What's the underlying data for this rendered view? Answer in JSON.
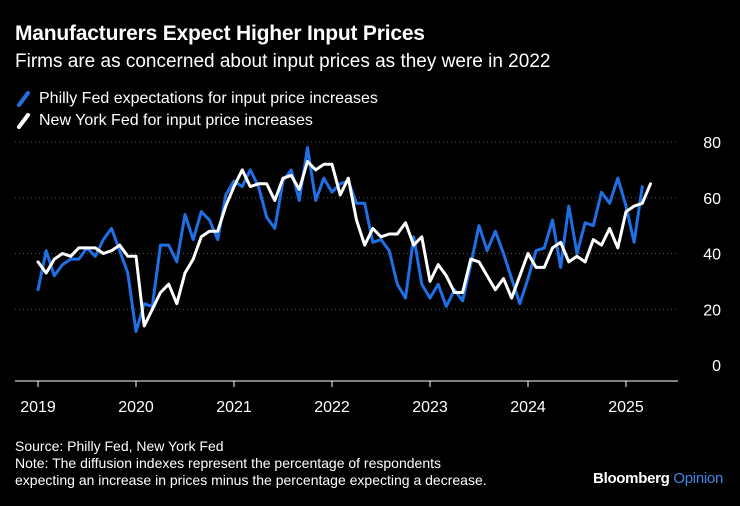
{
  "header": {
    "title": "Manufacturers Expect Higher Input Prices",
    "subtitle": "Firms are as concerned about input prices as they were in 2022"
  },
  "footer": {
    "source": "Source: Philly Fed, New York Fed",
    "note_line1": "Note: The diffusion indexes represent the percentage of respondents",
    "note_line2": "expecting an increase in prices minus the percentage expecting a decrease."
  },
  "brand": {
    "name": "Bloomberg",
    "suffix": "Opinion"
  },
  "colors": {
    "philly": "#1f6fe5",
    "ny": "#ffffff",
    "background": "#000000",
    "grid": "#555555"
  },
  "chart_data": {
    "type": "line",
    "title": "Manufacturers Expect Higher Input Prices",
    "subtitle": "Firms are as concerned about input prices as they were in 2022",
    "xlabel": "",
    "ylabel": "",
    "xlim": [
      2018.92,
      2025.5
    ],
    "ylim": [
      0,
      80
    ],
    "yticks": [
      0,
      20,
      40,
      60,
      80
    ],
    "xticks": [
      {
        "value": 2019.0,
        "label": "2019"
      },
      {
        "value": 2020.0,
        "label": "2020"
      },
      {
        "value": 2021.0,
        "label": "2021"
      },
      {
        "value": 2022.0,
        "label": "2022"
      },
      {
        "value": 2023.0,
        "label": "2023"
      },
      {
        "value": 2024.0,
        "label": "2024"
      },
      {
        "value": 2025.0,
        "label": "2025"
      }
    ],
    "grid": true,
    "legend_position": "top-left",
    "series": [
      {
        "name": "Philly Fed expectations for input price increases",
        "color": "#1f6fe5",
        "x_start": 2019.0,
        "x_step": 0.08333,
        "values": [
          27,
          41,
          32,
          36,
          38,
          38,
          42,
          39,
          45,
          49,
          41,
          33,
          12,
          22,
          21,
          43,
          43,
          37,
          54,
          45,
          55,
          52,
          45,
          61,
          66,
          64,
          70,
          64,
          53,
          49,
          66,
          70,
          59,
          78,
          59,
          67,
          62,
          65,
          66,
          58,
          58,
          44,
          45,
          41,
          29,
          24,
          46,
          29,
          24,
          29,
          21,
          27,
          23,
          36,
          50,
          41,
          48,
          40,
          31,
          22,
          31,
          41,
          42,
          52,
          35,
          57,
          40,
          51,
          50,
          62,
          58,
          67,
          57,
          44,
          64
        ]
      },
      {
        "name": "New York Fed for input price increases",
        "color": "#ffffff",
        "x_start": 2019.0,
        "x_step": 0.08333,
        "values": [
          37,
          33,
          38,
          40,
          39,
          42,
          42,
          42,
          40,
          41,
          43,
          39,
          39,
          14,
          20,
          26,
          29,
          22,
          33,
          38,
          46,
          48,
          48,
          57,
          64,
          70,
          64,
          65,
          65,
          59,
          67,
          68,
          63,
          73,
          70,
          72,
          72,
          61,
          67,
          52,
          43,
          49,
          46,
          47,
          47,
          51,
          43,
          46,
          30,
          36,
          32,
          26,
          26,
          38,
          37,
          32,
          27,
          31,
          24,
          32,
          40,
          35,
          35,
          42,
          44,
          37,
          39,
          37,
          45,
          43,
          49,
          42,
          55,
          57,
          58,
          65
        ]
      }
    ]
  }
}
